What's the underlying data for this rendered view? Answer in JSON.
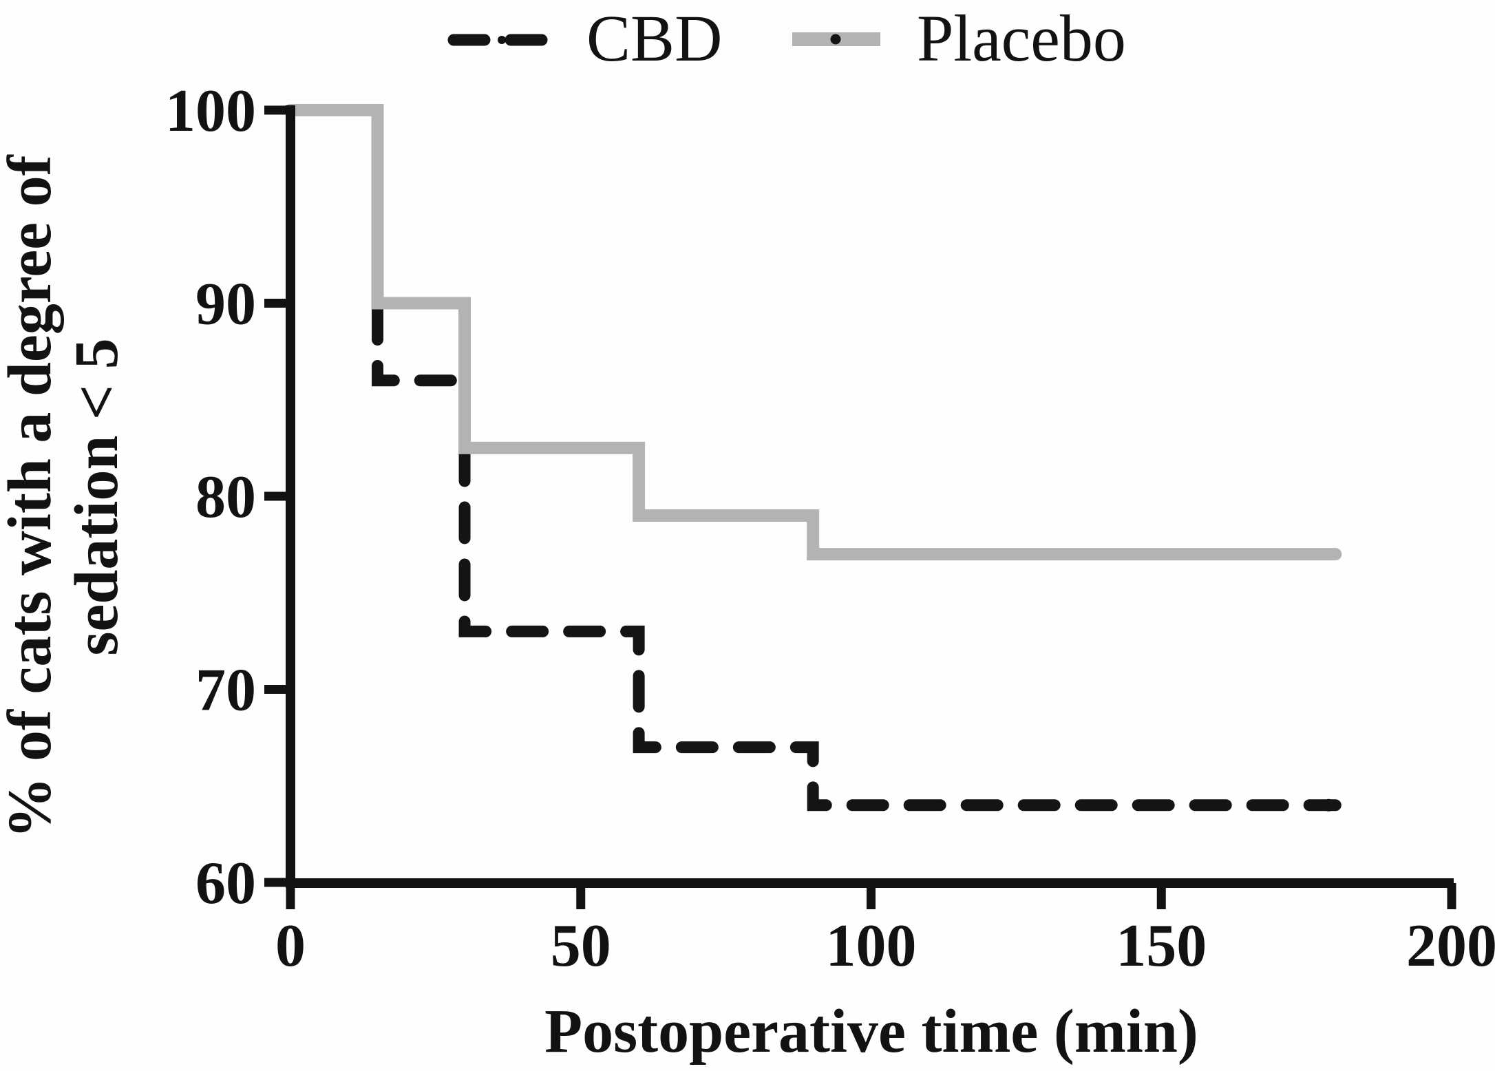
{
  "legend": {
    "entries": [
      {
        "label": "CBD",
        "style": "dashed-black"
      },
      {
        "label": "Placebo",
        "style": "solid-gray"
      }
    ]
  },
  "colors": {
    "cbd": "#141414",
    "placebo": "#b3b3b3",
    "axis": "#121212",
    "background": "#fffefe"
  },
  "chart_data": {
    "type": "line",
    "subtype": "kaplan-meier-step",
    "title": "",
    "xlabel": "Postoperative time (min)",
    "ylabel_line1": "% of cats with a degree of",
    "ylabel_line2": "sedation < 5",
    "xlim": [
      0,
      200
    ],
    "ylim": [
      60,
      100
    ],
    "x_ticks": [
      0,
      50,
      100,
      150,
      200
    ],
    "y_ticks": [
      60,
      70,
      80,
      90,
      100
    ],
    "grid": false,
    "legend_position": "top",
    "series": [
      {
        "name": "CBD",
        "style": "dashed",
        "color": "#141414",
        "step_times": [
          0,
          15,
          30,
          60,
          90,
          180
        ],
        "levels": [
          100,
          86,
          73,
          67,
          64
        ],
        "end_marker": "dot"
      },
      {
        "name": "Placebo",
        "style": "solid",
        "color": "#b3b3b3",
        "step_times": [
          0,
          15,
          30,
          60,
          90,
          180
        ],
        "levels": [
          100,
          90,
          82.5,
          79,
          77
        ],
        "end_marker": "round-cap"
      }
    ]
  }
}
